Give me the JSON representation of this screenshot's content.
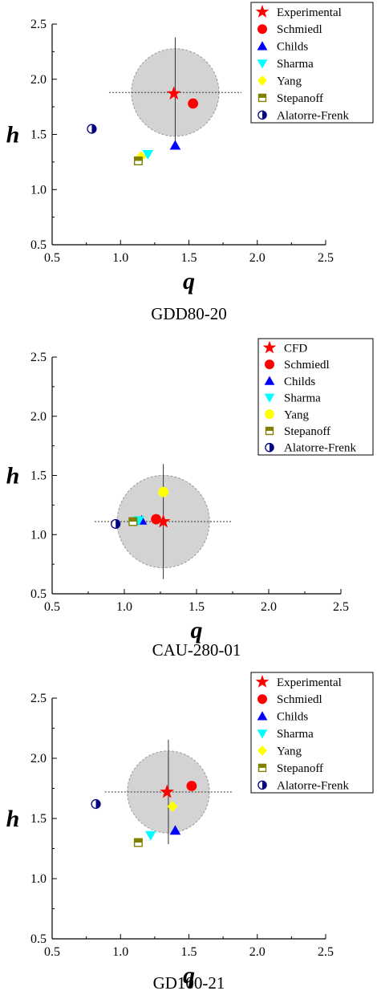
{
  "chart_data": [
    {
      "type": "scatter",
      "caption": "GDD80-20",
      "xlabel": "q",
      "ylabel": "h",
      "xlim": [
        0.5,
        2.5
      ],
      "ylim": [
        0.5,
        2.5
      ],
      "xticks": [
        "0.5",
        "1.0",
        "1.5",
        "2.0",
        "2.5"
      ],
      "yticks": [
        "0.5",
        "1.0",
        "1.5",
        "2.0",
        "2.5"
      ],
      "legend_position": "top-right",
      "grid": false,
      "reference_circle": {
        "x": 1.4,
        "y": 1.88,
        "radius": 0.32,
        "color": "#d3d3d3"
      },
      "series": [
        {
          "name": "Experimental",
          "marker": "star",
          "color": "#ff0000",
          "x": 1.39,
          "y": 1.87
        },
        {
          "name": "Schmiedl",
          "marker": "circle",
          "color": "#ff0000",
          "x": 1.53,
          "y": 1.78
        },
        {
          "name": "Childs",
          "marker": "triangle-up",
          "color": "#0000ff",
          "x": 1.4,
          "y": 1.4
        },
        {
          "name": "Sharma",
          "marker": "triangle-down",
          "color": "#00ffff",
          "x": 1.2,
          "y": 1.32
        },
        {
          "name": "Yang",
          "marker": "diamond",
          "color": "#ffff00",
          "x": 1.15,
          "y": 1.3
        },
        {
          "name": "Stepanoff",
          "marker": "half-square",
          "color": "#808000",
          "x": 1.13,
          "y": 1.26
        },
        {
          "name": "Alatorre-Frenk",
          "marker": "half-circle",
          "color": "#000080",
          "x": 0.79,
          "y": 1.55
        }
      ]
    },
    {
      "type": "scatter",
      "caption": "CAU-280-01",
      "xlabel": "q",
      "ylabel": "h",
      "xlim": [
        0.5,
        2.5
      ],
      "ylim": [
        0.5,
        2.5
      ],
      "xticks": [
        "0.5",
        "1.0",
        "1.5",
        "2.0",
        "2.5"
      ],
      "yticks": [
        "0.5",
        "1.0",
        "1.5",
        "2.0",
        "2.5"
      ],
      "legend_position": "top-right",
      "grid": false,
      "reference_circle": {
        "x": 1.27,
        "y": 1.11,
        "radius": 0.32,
        "color": "#d3d3d3"
      },
      "series": [
        {
          "name": "CFD",
          "marker": "star",
          "color": "#ff0000",
          "x": 1.27,
          "y": 1.11
        },
        {
          "name": "Schmiedl",
          "marker": "circle",
          "color": "#ff0000",
          "x": 1.22,
          "y": 1.13
        },
        {
          "name": "Childs",
          "marker": "triangle-up",
          "color": "#0000ff",
          "x": 1.12,
          "y": 1.12
        },
        {
          "name": "Sharma",
          "marker": "triangle-down",
          "color": "#00ffff",
          "x": 1.1,
          "y": 1.12
        },
        {
          "name": "Yang",
          "marker": "circle",
          "color": "#ffff00",
          "x": 1.27,
          "y": 1.36
        },
        {
          "name": "Stepanoff",
          "marker": "half-square",
          "color": "#808000",
          "x": 1.06,
          "y": 1.11
        },
        {
          "name": "Alatorre-Frenk",
          "marker": "half-circle",
          "color": "#000080",
          "x": 0.94,
          "y": 1.09
        }
      ]
    },
    {
      "type": "scatter",
      "caption": "GD100-21",
      "xlabel": "q",
      "ylabel": "h",
      "xlim": [
        0.5,
        2.5
      ],
      "ylim": [
        0.5,
        2.5
      ],
      "xticks": [
        "0.5",
        "1.0",
        "1.5",
        "2.0",
        "2.5"
      ],
      "yticks": [
        "0.5",
        "1.0",
        "1.5",
        "2.0",
        "2.5"
      ],
      "legend_position": "top-right",
      "grid": false,
      "reference_circle": {
        "x": 1.35,
        "y": 1.72,
        "radius": 0.3,
        "color": "#d3d3d3"
      },
      "series": [
        {
          "name": "Experimental",
          "marker": "star",
          "color": "#ff0000",
          "x": 1.34,
          "y": 1.72
        },
        {
          "name": "Schmiedl",
          "marker": "circle",
          "color": "#ff0000",
          "x": 1.52,
          "y": 1.77
        },
        {
          "name": "Childs",
          "marker": "triangle-up",
          "color": "#0000ff",
          "x": 1.4,
          "y": 1.4
        },
        {
          "name": "Sharma",
          "marker": "triangle-down",
          "color": "#00ffff",
          "x": 1.22,
          "y": 1.36
        },
        {
          "name": "Yang",
          "marker": "diamond",
          "color": "#ffff00",
          "x": 1.38,
          "y": 1.6
        },
        {
          "name": "Stepanoff",
          "marker": "half-square",
          "color": "#808000",
          "x": 1.13,
          "y": 1.3
        },
        {
          "name": "Alatorre-Frenk",
          "marker": "half-circle",
          "color": "#000080",
          "x": 0.82,
          "y": 1.62
        }
      ]
    }
  ]
}
